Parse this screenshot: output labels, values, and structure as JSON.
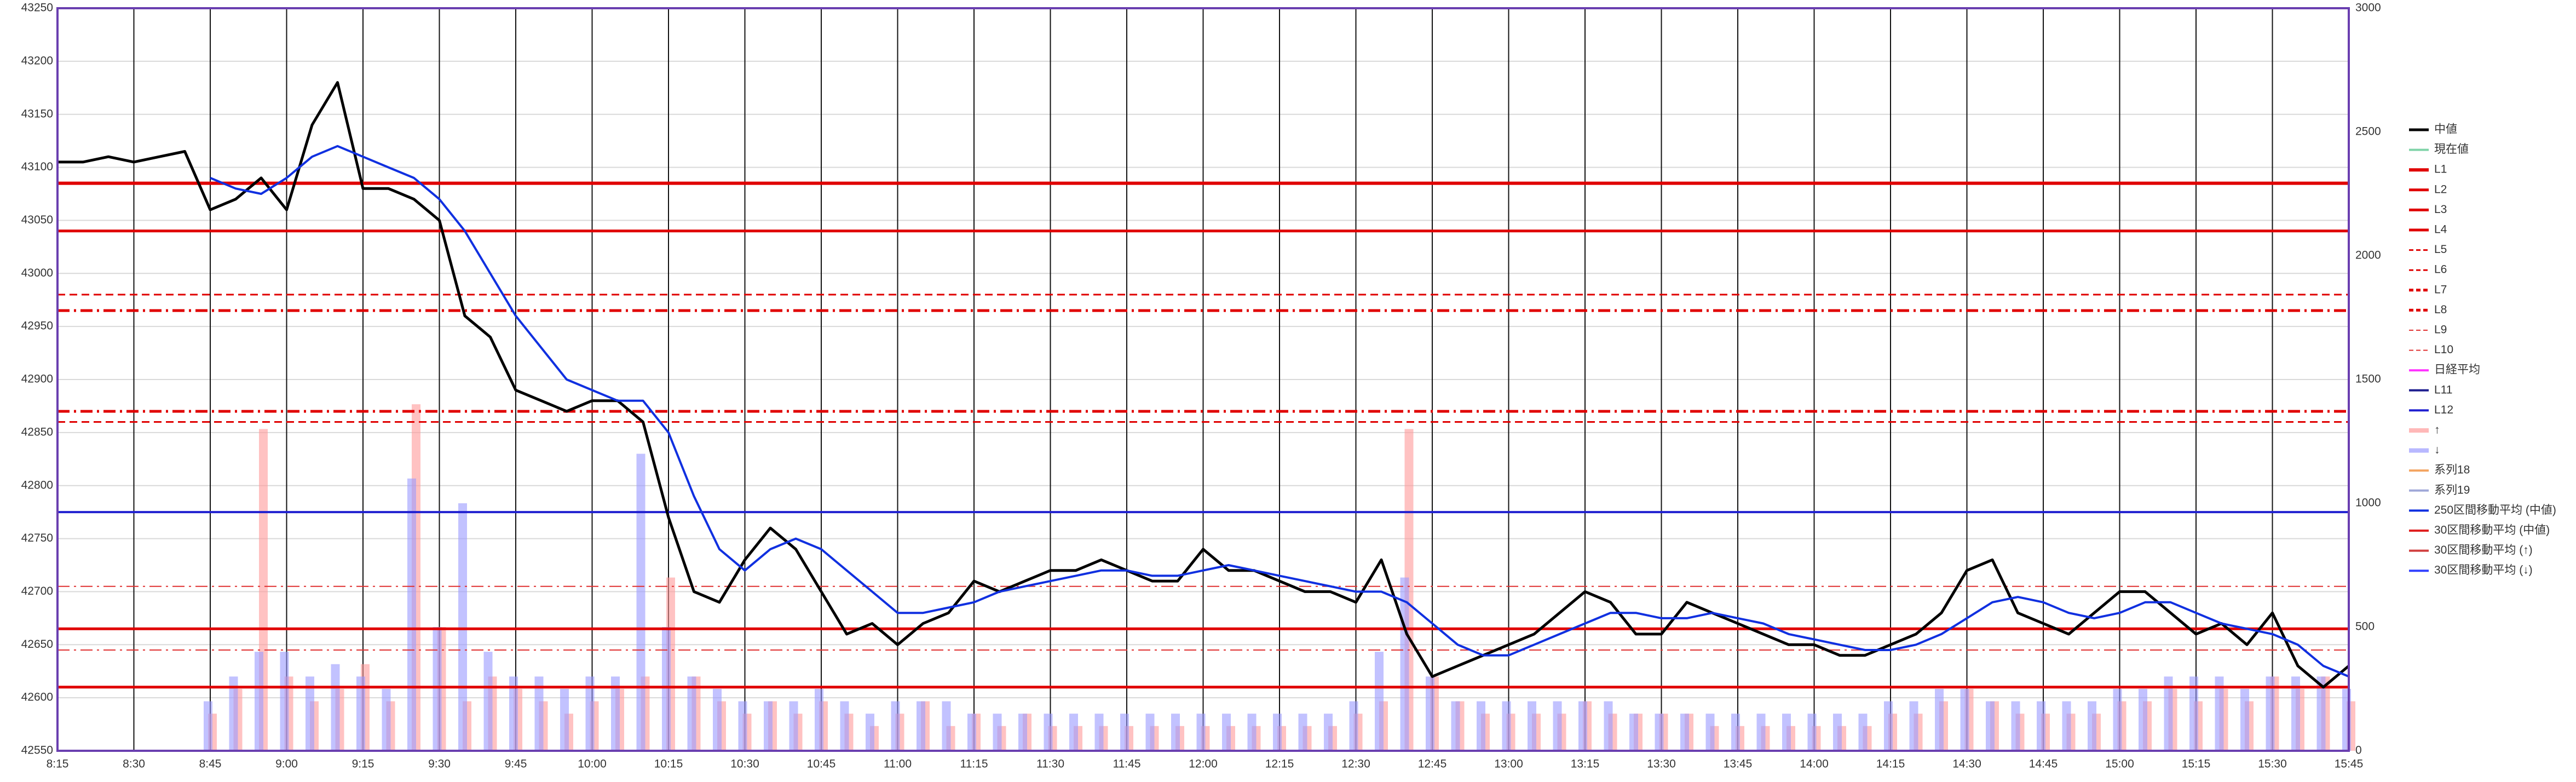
{
  "chart_data": {
    "type": "line",
    "ylim": [
      42550,
      43250
    ],
    "yticks": [
      42550,
      42600,
      42650,
      42700,
      42750,
      42800,
      42850,
      42900,
      42950,
      43000,
      43050,
      43100,
      43150,
      43200,
      43250
    ],
    "y2lim": [
      0,
      3000
    ],
    "y2ticks": [
      0,
      500,
      1000,
      1500,
      2000,
      2500,
      3000
    ],
    "xticks": [
      "8:15",
      "8:30",
      "8:45",
      "9:00",
      "9:15",
      "9:30",
      "9:45",
      "10:00",
      "10:15",
      "10:30",
      "10:45",
      "11:00",
      "11:15",
      "11:30",
      "11:45",
      "12:00",
      "12:15",
      "12:30",
      "12:45",
      "13:00",
      "13:15",
      "13:30",
      "13:45",
      "14:00",
      "14:15",
      "14:30",
      "14:45",
      "15:00",
      "15:15",
      "15:30",
      "15:45"
    ],
    "grid": true,
    "legend": "right",
    "x": [
      "8:15",
      "8:20",
      "8:25",
      "8:30",
      "8:35",
      "8:40",
      "8:45",
      "8:50",
      "8:55",
      "9:00",
      "9:05",
      "9:10",
      "9:15",
      "9:20",
      "9:25",
      "9:30",
      "9:35",
      "9:40",
      "9:45",
      "9:50",
      "9:55",
      "10:00",
      "10:05",
      "10:10",
      "10:15",
      "10:20",
      "10:25",
      "10:30",
      "10:35",
      "10:40",
      "10:45",
      "10:50",
      "10:55",
      "11:00",
      "11:05",
      "11:10",
      "11:15",
      "11:20",
      "11:25",
      "11:30",
      "11:35",
      "11:40",
      "11:45",
      "11:50",
      "11:55",
      "12:00",
      "12:05",
      "12:10",
      "12:15",
      "12:20",
      "12:25",
      "12:30",
      "12:35",
      "12:40",
      "12:45",
      "12:50",
      "12:55",
      "13:00",
      "13:05",
      "13:10",
      "13:15",
      "13:20",
      "13:25",
      "13:30",
      "13:35",
      "13:40",
      "13:45",
      "13:50",
      "13:55",
      "14:00",
      "14:05",
      "14:10",
      "14:15",
      "14:20",
      "14:25",
      "14:30",
      "14:35",
      "14:40",
      "14:45",
      "14:50",
      "14:55",
      "15:00",
      "15:05",
      "15:10",
      "15:15",
      "15:20",
      "15:25",
      "15:30",
      "15:35",
      "15:40",
      "15:45"
    ],
    "series": [
      {
        "name": "中値",
        "color": "#000000",
        "kind": "line",
        "width": 5,
        "values": [
          43105,
          43105,
          43110,
          43105,
          43110,
          43115,
          43060,
          43070,
          43090,
          43060,
          43140,
          43180,
          43080,
          43080,
          43070,
          43050,
          42960,
          42940,
          42890,
          42880,
          42870,
          42880,
          42880,
          42860,
          42770,
          42700,
          42690,
          42730,
          42760,
          42740,
          42700,
          42660,
          42670,
          42650,
          42670,
          42680,
          42710,
          42700,
          42710,
          42720,
          42720,
          42730,
          42720,
          42710,
          42710,
          42740,
          42720,
          42720,
          42710,
          42700,
          42700,
          42690,
          42730,
          42660,
          42620,
          42630,
          42640,
          42650,
          42660,
          42680,
          42700,
          42690,
          42660,
          42660,
          42690,
          42680,
          42670,
          42660,
          42650,
          42650,
          42640,
          42640,
          42650,
          42660,
          42680,
          42720,
          42730,
          42680,
          42670,
          42660,
          42680,
          42700,
          42700,
          42680,
          42660,
          42670,
          42650,
          42680,
          42630,
          42610,
          42630
        ]
      },
      {
        "name": "現在値",
        "color": "#7fd3a8"
      },
      {
        "name": "L1",
        "color": "#e00000",
        "level": 43085,
        "dash": "solid",
        "width": 6
      },
      {
        "name": "L2",
        "color": "#e00000",
        "level": 43040,
        "dash": "solid",
        "width": 5
      },
      {
        "name": "L3",
        "color": "#e00000",
        "level": 42665,
        "dash": "solid",
        "width": 5
      },
      {
        "name": "L4",
        "color": "#e00000",
        "level": 42610,
        "dash": "solid",
        "width": 5
      },
      {
        "name": "L5",
        "color": "#e00000",
        "level": 42980,
        "dash": "dash",
        "width": 3
      },
      {
        "name": "L6",
        "color": "#e00000",
        "level": 42860,
        "dash": "dash",
        "width": 3
      },
      {
        "name": "L7",
        "color": "#e00000",
        "level": 42965,
        "dash": "dashdot",
        "width": 5
      },
      {
        "name": "L8",
        "color": "#e00000",
        "level": 42870,
        "dash": "dashdot",
        "width": 5
      },
      {
        "name": "L9",
        "color": "#e03030",
        "level": 42705,
        "dash": "dashdot",
        "width": 2
      },
      {
        "name": "L10",
        "color": "#e03030",
        "level": 42645,
        "dash": "dashdot",
        "width": 2
      },
      {
        "name": "日経平均",
        "color": "#ff33ff"
      },
      {
        "name": "L11",
        "color": "#1f1f8f"
      },
      {
        "name": "L12",
        "color": "#2020d0",
        "level": 42775,
        "dash": "solid",
        "width": 4
      },
      {
        "name": "↑",
        "color": "#ff9a9a",
        "kind": "bar",
        "axis": "y2",
        "values": [
          0,
          0,
          0,
          0,
          0,
          0,
          150,
          250,
          1300,
          300,
          200,
          250,
          350,
          200,
          1400,
          500,
          200,
          300,
          250,
          200,
          150,
          200,
          250,
          300,
          700,
          300,
          200,
          150,
          200,
          150,
          200,
          150,
          100,
          150,
          200,
          100,
          150,
          100,
          150,
          100,
          100,
          100,
          100,
          100,
          100,
          100,
          100,
          100,
          100,
          100,
          100,
          150,
          200,
          1300,
          300,
          200,
          150,
          150,
          150,
          150,
          200,
          150,
          150,
          150,
          150,
          100,
          100,
          100,
          100,
          100,
          100,
          100,
          150,
          150,
          200,
          250,
          200,
          150,
          150,
          150,
          150,
          200,
          200,
          250,
          200,
          250,
          200,
          300,
          250,
          300,
          200
        ]
      },
      {
        "name": "↓",
        "color": "#9a9aff",
        "kind": "bar",
        "axis": "y2",
        "values": [
          0,
          0,
          0,
          0,
          0,
          0,
          200,
          300,
          400,
          400,
          300,
          350,
          300,
          250,
          1100,
          500,
          1000,
          400,
          300,
          300,
          250,
          300,
          300,
          1200,
          500,
          300,
          250,
          200,
          200,
          200,
          250,
          200,
          150,
          200,
          200,
          200,
          150,
          150,
          150,
          150,
          150,
          150,
          150,
          150,
          150,
          150,
          150,
          150,
          150,
          150,
          150,
          200,
          400,
          700,
          300,
          200,
          200,
          200,
          200,
          200,
          200,
          200,
          150,
          150,
          150,
          150,
          150,
          150,
          150,
          150,
          150,
          150,
          200,
          200,
          250,
          250,
          200,
          200,
          200,
          200,
          200,
          250,
          250,
          300,
          300,
          300,
          250,
          300,
          300,
          300,
          250
        ]
      },
      {
        "name": "系列18",
        "color": "#f4a460"
      },
      {
        "name": "系列19",
        "color": "#a0a8d8"
      },
      {
        "name": "250区間移動平均 (中値)",
        "color": "#1030e0",
        "kind": "line",
        "width": 4,
        "values": [
          null,
          null,
          null,
          null,
          null,
          null,
          43090,
          43080,
          43075,
          43090,
          43110,
          43120,
          43110,
          43100,
          43090,
          43070,
          43040,
          43000,
          42960,
          42930,
          42900,
          42890,
          42880,
          42880,
          42850,
          42790,
          42740,
          42720,
          42740,
          42750,
          42740,
          42720,
          42700,
          42680,
          42680,
          42685,
          42690,
          42700,
          42705,
          42710,
          42715,
          42720,
          42720,
          42715,
          42715,
          42720,
          42725,
          42720,
          42715,
          42710,
          42705,
          42700,
          42700,
          42690,
          42670,
          42650,
          42640,
          42640,
          42650,
          42660,
          42670,
          42680,
          42680,
          42675,
          42675,
          42680,
          42675,
          42670,
          42660,
          42655,
          42650,
          42645,
          42645,
          42650,
          42660,
          42675,
          42690,
          42695,
          42690,
          42680,
          42675,
          42680,
          42690,
          42690,
          42680,
          42670,
          42665,
          42660,
          42650,
          42630,
          42620
        ]
      },
      {
        "name": "30区間移動平均 (中値)",
        "color": "#e02020"
      },
      {
        "name": "30区間移動平均 (↑)",
        "color": "#d04040"
      },
      {
        "name": "30区間移動平均 (↓)",
        "color": "#3040ff"
      }
    ]
  }
}
